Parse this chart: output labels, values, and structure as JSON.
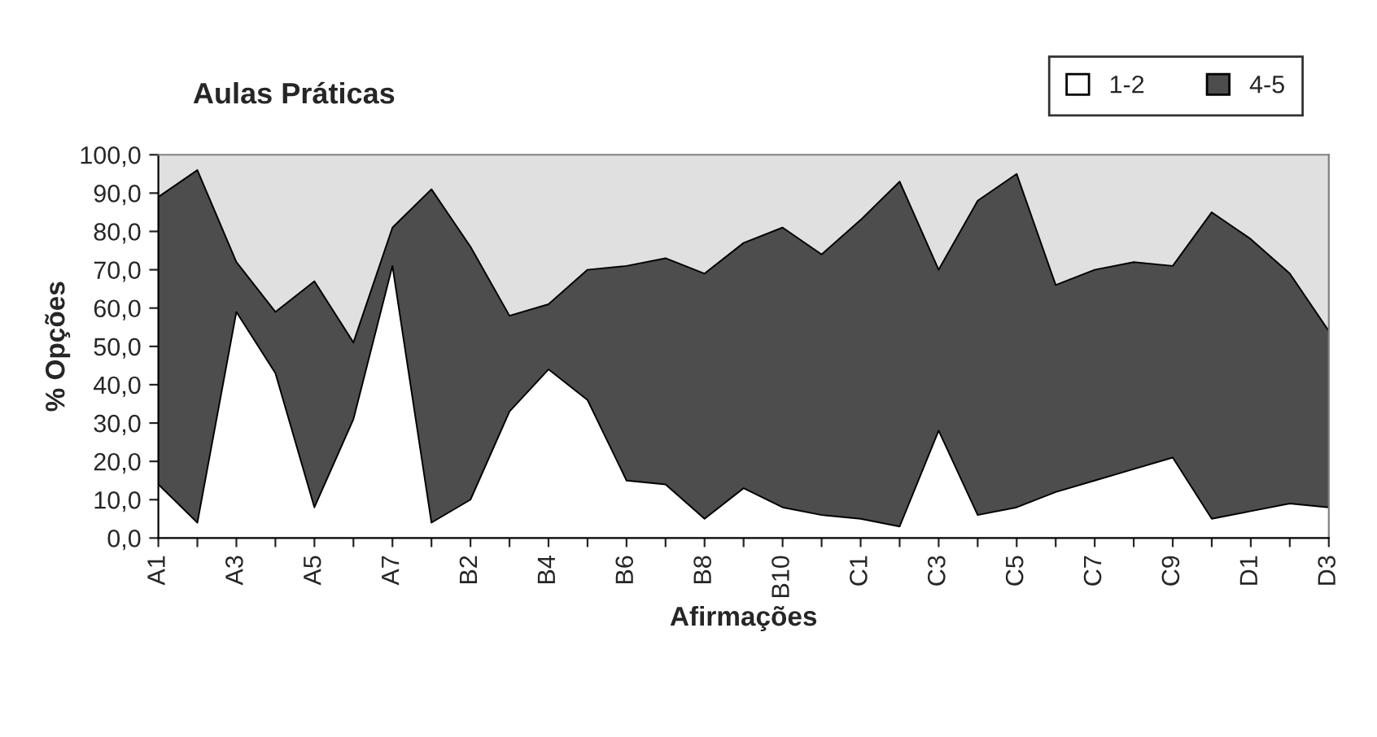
{
  "chart_data": {
    "type": "area",
    "stacked": true,
    "title": "Aulas Práticas",
    "xlabel": "Afirmações",
    "ylabel": "% Opções",
    "categories": [
      "A1",
      null,
      "A3",
      null,
      "A5",
      null,
      "A7",
      null,
      "B2",
      null,
      "B4",
      null,
      "B6",
      null,
      "B8",
      null,
      "B10",
      null,
      "C1",
      null,
      "C3",
      null,
      "C5",
      null,
      "C7",
      null,
      "C9",
      null,
      "D1",
      null,
      "D3"
    ],
    "series": [
      {
        "name": "1-2",
        "color": "#ffffff",
        "values": [
          14,
          4,
          59,
          43,
          8,
          31,
          71,
          4,
          10,
          33,
          44,
          36,
          15,
          14,
          5,
          13,
          8,
          6,
          5,
          3,
          28,
          6,
          8,
          12,
          15,
          18,
          21,
          5,
          7,
          9,
          8
        ]
      },
      {
        "name": "4-5",
        "color": "#4d4d4d",
        "values": [
          75,
          92,
          13,
          16,
          59,
          20,
          10,
          87,
          66,
          25,
          17,
          34,
          56,
          59,
          64,
          64,
          73,
          68,
          78,
          90,
          42,
          82,
          87,
          54,
          55,
          54,
          50,
          80,
          71,
          60,
          46
        ]
      }
    ],
    "ylim": [
      0,
      100
    ],
    "yticks": [
      {
        "value": 0,
        "label": "0,0"
      },
      {
        "value": 10,
        "label": "10,0"
      },
      {
        "value": 20,
        "label": "20,0"
      },
      {
        "value": 30,
        "label": "30,0"
      },
      {
        "value": 40,
        "label": "40,0"
      },
      {
        "value": 50,
        "label": "50,0"
      },
      {
        "value": 60,
        "label": "60,0"
      },
      {
        "value": 70,
        "label": "70,0"
      },
      {
        "value": 80,
        "label": "80,0"
      },
      {
        "value": 90,
        "label": "90,0"
      },
      {
        "value": 100,
        "label": "100,0"
      }
    ],
    "legend": "top right"
  }
}
